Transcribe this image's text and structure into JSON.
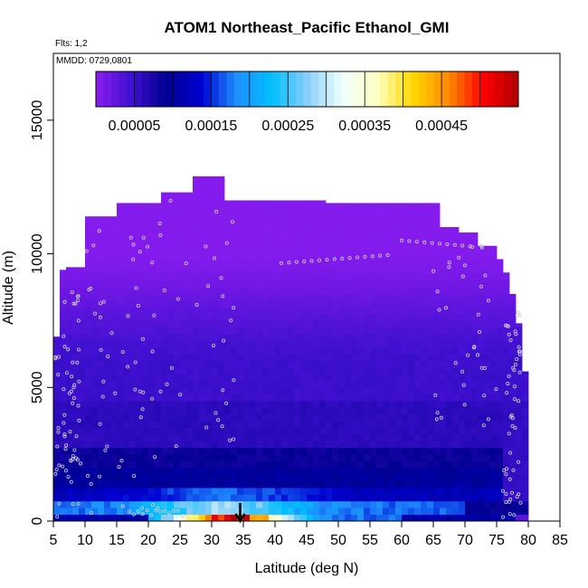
{
  "chart_data": {
    "type": "heatmap",
    "title": "ATOM1 Northeast_Pacific Ethanol_GMI",
    "flights_label": "Flts: 1,2",
    "dates_label": "MMDD: 0729,0801",
    "xlabel": "Latitude (deg N)",
    "ylabel": "Altitude (m)",
    "xlim": [
      5,
      85
    ],
    "ylim": [
      0,
      17500
    ],
    "x_ticks": [
      "5",
      "10",
      "15",
      "20",
      "25",
      "30",
      "35",
      "40",
      "45",
      "50",
      "55",
      "60",
      "65",
      "70",
      "75",
      "80",
      "85"
    ],
    "y_ticks": [
      "0",
      "5000",
      "10000",
      "15000"
    ],
    "colorbar": {
      "ticks": [
        "0.00005",
        "0.00015",
        "0.00025",
        "0.00035",
        "0.00045"
      ],
      "range": [
        0,
        0.00055
      ],
      "colors": [
        "#8B1CF0",
        "#4010D0",
        "#000090",
        "#0000D0",
        "#1E90FF",
        "#00BFFF",
        "#87CEFA",
        "#F0FFFF",
        "#FFFFC0",
        "#FFD700",
        "#FF8C00",
        "#FF0000",
        "#B00000"
      ]
    },
    "heatmap_summary": {
      "surface_layer_max_latitude": 33,
      "surface_layer_max_value": 0.0005,
      "upper_troposphere_value": 1e-05
    },
    "arrow_latitude": 34.5,
    "flight_points_color": "#d0d0d0"
  }
}
